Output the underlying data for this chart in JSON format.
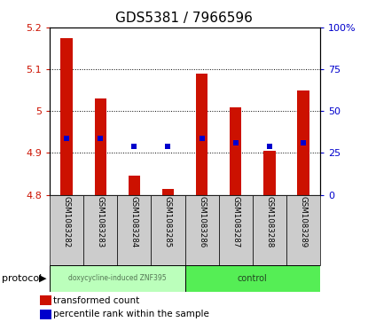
{
  "title": "GDS5381 / 7966596",
  "samples": [
    "GSM1083282",
    "GSM1083283",
    "GSM1083284",
    "GSM1083285",
    "GSM1083286",
    "GSM1083287",
    "GSM1083288",
    "GSM1083289"
  ],
  "bar_bottoms": [
    4.8,
    4.8,
    4.8,
    4.8,
    4.8,
    4.8,
    4.8,
    4.8
  ],
  "bar_tops": [
    5.175,
    5.03,
    4.845,
    4.815,
    5.09,
    5.01,
    4.905,
    5.05
  ],
  "blue_dots_y": [
    4.935,
    4.935,
    4.915,
    4.915,
    4.935,
    4.925,
    4.915,
    4.925
  ],
  "ylim_left": [
    4.8,
    5.2
  ],
  "ylim_right": [
    0,
    100
  ],
  "yticks_left": [
    4.8,
    4.9,
    5.0,
    5.1,
    5.2
  ],
  "ytick_left_labels": [
    "4.8",
    "4.9",
    "5",
    "5.1",
    "5.2"
  ],
  "yticks_right": [
    0,
    25,
    50,
    75,
    100
  ],
  "ytick_right_labels": [
    "0",
    "25",
    "50",
    "75",
    "100%"
  ],
  "bar_color": "#cc1100",
  "dot_color": "#0000cc",
  "grid_color": "#000000",
  "plot_bg": "#ffffff",
  "cell_bg": "#cccccc",
  "group1_label": "doxycycline-induced ZNF395",
  "group2_label": "control",
  "group1_color": "#bbffbb",
  "group2_color": "#55ee55",
  "group1_count": 4,
  "group2_count": 4,
  "protocol_label": "protocol",
  "legend_red_label": "transformed count",
  "legend_blue_label": "percentile rank within the sample",
  "bar_width": 0.35,
  "dot_size": 4
}
